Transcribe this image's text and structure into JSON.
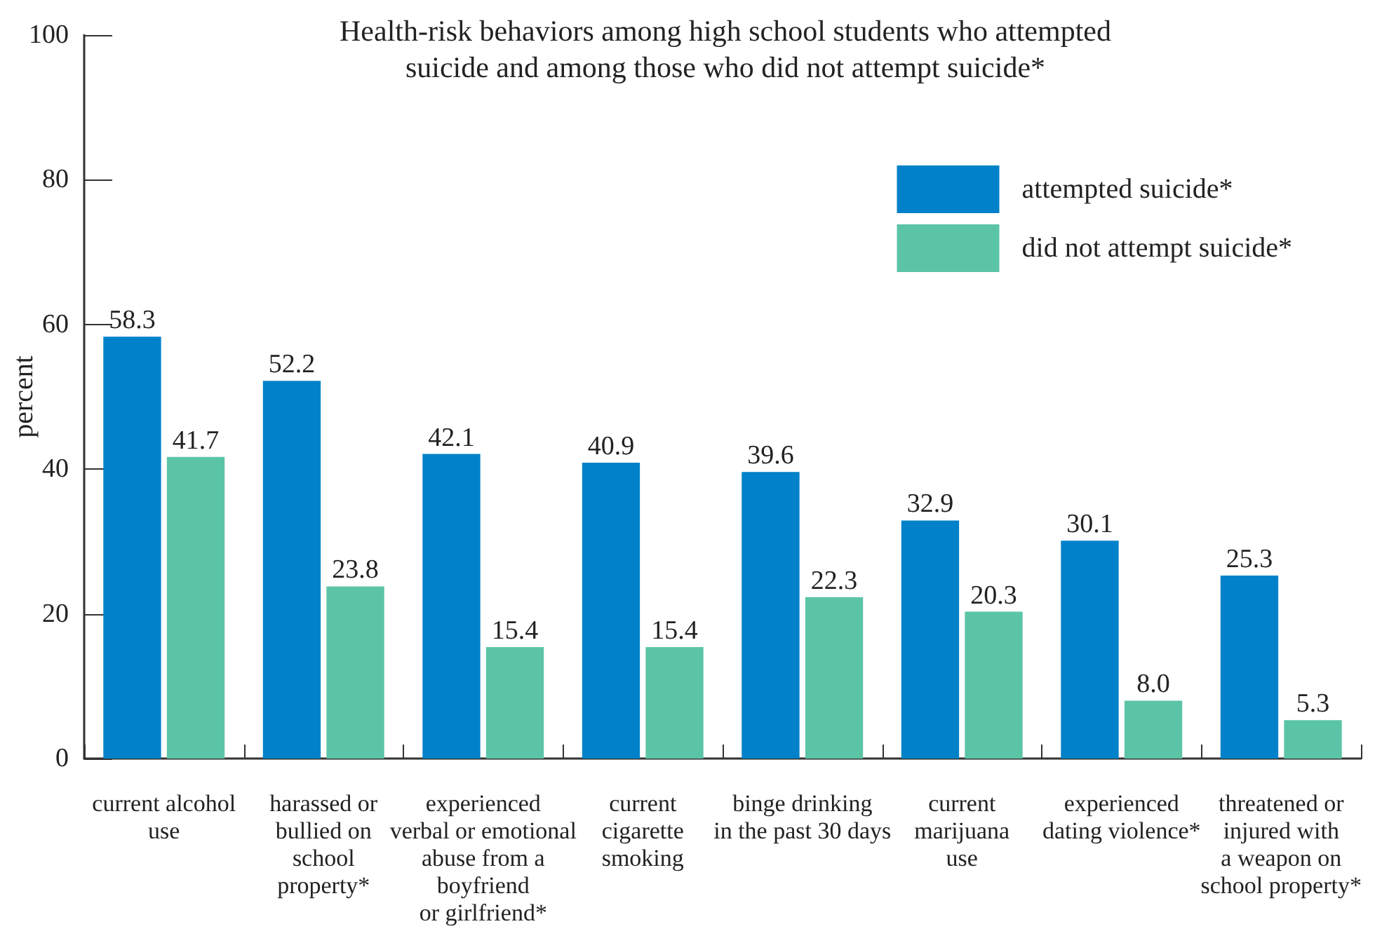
{
  "chart_data": {
    "type": "bar",
    "title": "Health-risk behaviors among high school students who attempted\nsuicide and among those who did not attempt suicide*",
    "ylabel": "percent",
    "categories": [
      "current alcohol\nuse",
      "harassed or\nbullied on\nschool\nproperty*",
      "experienced\nverbal or emotional\nabuse from a\nboyfriend\nor girlfriend*",
      "current\ncigarette\nsmoking",
      "binge drinking\nin the past 30 days",
      "current\nmarijuana\nuse",
      "experienced\ndating violence*",
      "threatened or\ninjured with\na weapon on\nschool property*"
    ],
    "series": [
      {
        "name": "attempted suicide*",
        "color": "#0081c9",
        "values": [
          58.3,
          52.2,
          42.1,
          40.9,
          39.6,
          32.9,
          30.1,
          25.3
        ],
        "value_labels": [
          "58.3",
          "52.2",
          "42.1",
          "40.9",
          "39.6",
          "32.9",
          "30.1",
          "25.3"
        ]
      },
      {
        "name": "did not attempt suicide*",
        "color": "#5bc4a6",
        "values": [
          41.7,
          23.8,
          15.4,
          15.4,
          22.3,
          20.3,
          8.0,
          5.3
        ],
        "value_labels": [
          "41.7",
          "23.8",
          "15.4",
          "15.4",
          "22.3",
          "20.3",
          "8.0",
          "5.3"
        ]
      }
    ],
    "ylim": [
      0,
      100
    ],
    "yticks": [
      0,
      20,
      40,
      60,
      80,
      100
    ],
    "legend": "top right"
  }
}
